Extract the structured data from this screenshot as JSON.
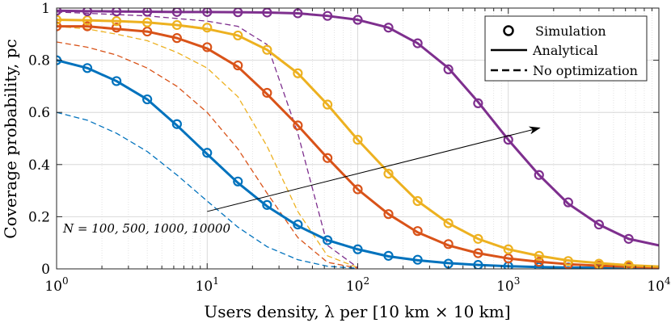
{
  "chart_data": {
    "type": "line",
    "xscale": "log",
    "xlabel": "Users density, λ per [10 km × 10 km]",
    "ylabel": "Coverage probability, pc",
    "xlim": [
      1,
      10000
    ],
    "ylim": [
      0,
      1
    ],
    "x_ticks": [
      1,
      10,
      100,
      1000,
      10000
    ],
    "x_tick_labels": [
      {
        "base": "10",
        "exp": "0"
      },
      {
        "base": "10",
        "exp": "1"
      },
      {
        "base": "10",
        "exp": "2"
      },
      {
        "base": "10",
        "exp": "3"
      },
      {
        "base": "10",
        "exp": "4"
      }
    ],
    "y_ticks": [
      0,
      0.2,
      0.4,
      0.6,
      0.8,
      1
    ],
    "y_tick_labels": [
      "0",
      "0.2",
      "0.4",
      "0.6",
      "0.8",
      "1"
    ],
    "grid": true,
    "legend": {
      "position": "top-right",
      "entries": [
        "Simulation",
        "Analytical",
        "No optimization"
      ]
    },
    "annotation": "N = 100, 500, 1000, 10000",
    "arrow": {
      "from": [
        10,
        0.22
      ],
      "to": [
        1600,
        0.54
      ]
    },
    "series": [
      {
        "name": "N = 100",
        "color": "#0072BD",
        "analytical": {
          "x": [
            1,
            1.6,
            2.5,
            4,
            6.3,
            10,
            16,
            25,
            40,
            63,
            100,
            160,
            250,
            400,
            630,
            1000,
            1600,
            2500,
            4000,
            6300,
            10000
          ],
          "y": [
            0.8,
            0.77,
            0.72,
            0.65,
            0.55,
            0.44,
            0.33,
            0.24,
            0.165,
            0.11,
            0.075,
            0.048,
            0.033,
            0.022,
            0.015,
            0.01,
            0.007,
            0.005,
            0.004,
            0.003,
            0.002
          ]
        },
        "simulation": {
          "x": [
            1,
            1.6,
            2.5,
            4,
            6.3,
            10,
            16,
            25,
            40,
            63,
            100,
            160,
            250,
            400,
            630,
            1000,
            1600,
            2500,
            4000,
            6300
          ],
          "y": [
            0.8,
            0.77,
            0.72,
            0.65,
            0.555,
            0.445,
            0.335,
            0.245,
            0.17,
            0.11,
            0.075,
            0.05,
            0.035,
            0.02,
            0.015,
            0.01,
            0.007,
            0.005,
            0.004,
            0.003
          ]
        },
        "no_optimization": {
          "x": [
            1,
            1.6,
            2.5,
            4,
            6.3,
            10,
            16,
            25,
            40,
            63,
            100
          ],
          "y": [
            0.6,
            0.57,
            0.52,
            0.45,
            0.36,
            0.26,
            0.16,
            0.085,
            0.035,
            0.01,
            0.002
          ]
        }
      },
      {
        "name": "N = 500",
        "color": "#D95319",
        "analytical": {
          "x": [
            1,
            1.6,
            2.5,
            4,
            6.3,
            10,
            16,
            25,
            40,
            63,
            100,
            160,
            250,
            400,
            630,
            1000,
            1600,
            2500,
            4000,
            6300,
            10000
          ],
          "y": [
            0.93,
            0.93,
            0.92,
            0.91,
            0.885,
            0.845,
            0.775,
            0.67,
            0.55,
            0.425,
            0.305,
            0.21,
            0.14,
            0.09,
            0.06,
            0.04,
            0.027,
            0.018,
            0.012,
            0.008,
            0.005
          ]
        },
        "simulation": {
          "x": [
            1,
            1.6,
            2.5,
            4,
            6.3,
            10,
            16,
            25,
            40,
            63,
            100,
            160,
            250,
            400,
            630,
            1000,
            1600,
            2500,
            4000,
            6300
          ],
          "y": [
            0.93,
            0.93,
            0.925,
            0.91,
            0.885,
            0.85,
            0.78,
            0.675,
            0.55,
            0.425,
            0.305,
            0.21,
            0.145,
            0.095,
            0.06,
            0.04,
            0.027,
            0.018,
            0.012,
            0.008
          ]
        },
        "no_optimization": {
          "x": [
            1,
            1.6,
            2.5,
            4,
            6.3,
            10,
            16,
            25,
            40,
            63,
            100
          ],
          "y": [
            0.87,
            0.85,
            0.82,
            0.77,
            0.7,
            0.6,
            0.46,
            0.29,
            0.12,
            0.025,
            0.003
          ]
        }
      },
      {
        "name": "N = 1000",
        "color": "#EDB120",
        "analytical": {
          "x": [
            1,
            1.6,
            2.5,
            4,
            6.3,
            10,
            16,
            25,
            40,
            63,
            100,
            160,
            250,
            400,
            630,
            1000,
            1600,
            2500,
            4000,
            6300,
            10000
          ],
          "y": [
            0.955,
            0.953,
            0.95,
            0.945,
            0.935,
            0.92,
            0.895,
            0.84,
            0.75,
            0.63,
            0.495,
            0.37,
            0.26,
            0.175,
            0.115,
            0.075,
            0.05,
            0.032,
            0.022,
            0.014,
            0.009
          ]
        },
        "simulation": {
          "x": [
            1,
            1.6,
            2.5,
            4,
            6.3,
            10,
            16,
            25,
            40,
            63,
            100,
            160,
            250,
            400,
            630,
            1000,
            1600,
            2500,
            4000,
            6300
          ],
          "y": [
            0.955,
            0.953,
            0.95,
            0.945,
            0.935,
            0.925,
            0.895,
            0.84,
            0.75,
            0.63,
            0.495,
            0.365,
            0.26,
            0.175,
            0.115,
            0.075,
            0.05,
            0.03,
            0.02,
            0.014
          ]
        },
        "no_optimization": {
          "x": [
            1,
            1.6,
            2.5,
            4,
            6.3,
            10,
            16,
            25,
            40,
            63,
            100
          ],
          "y": [
            0.93,
            0.92,
            0.9,
            0.875,
            0.83,
            0.77,
            0.66,
            0.47,
            0.22,
            0.05,
            0.005
          ]
        }
      },
      {
        "name": "N = 10000",
        "color": "#7E2F8E",
        "analytical": {
          "x": [
            1,
            1.6,
            2.5,
            4,
            6.3,
            10,
            16,
            25,
            40,
            63,
            100,
            160,
            250,
            400,
            630,
            1000,
            1600,
            2500,
            4000,
            6300,
            10000
          ],
          "y": [
            0.99,
            0.988,
            0.987,
            0.986,
            0.985,
            0.985,
            0.984,
            0.983,
            0.98,
            0.97,
            0.955,
            0.925,
            0.865,
            0.77,
            0.64,
            0.495,
            0.36,
            0.25,
            0.17,
            0.115,
            0.09
          ]
        },
        "simulation": {
          "x": [
            1,
            1.6,
            2.5,
            4,
            6.3,
            10,
            16,
            25,
            40,
            63,
            100,
            160,
            250,
            400,
            630,
            1000,
            1600,
            2500,
            4000,
            6300
          ],
          "y": [
            0.99,
            0.988,
            0.987,
            0.986,
            0.985,
            0.985,
            0.984,
            0.983,
            0.98,
            0.97,
            0.955,
            0.925,
            0.865,
            0.765,
            0.635,
            0.495,
            0.36,
            0.255,
            0.17,
            0.115
          ]
        },
        "no_optimization": {
          "x": [
            1,
            1.6,
            2.5,
            4,
            6.3,
            10,
            16,
            25,
            40,
            63,
            100
          ],
          "y": [
            0.985,
            0.98,
            0.975,
            0.97,
            0.96,
            0.95,
            0.93,
            0.86,
            0.52,
            0.09,
            0.005
          ]
        }
      }
    ]
  }
}
